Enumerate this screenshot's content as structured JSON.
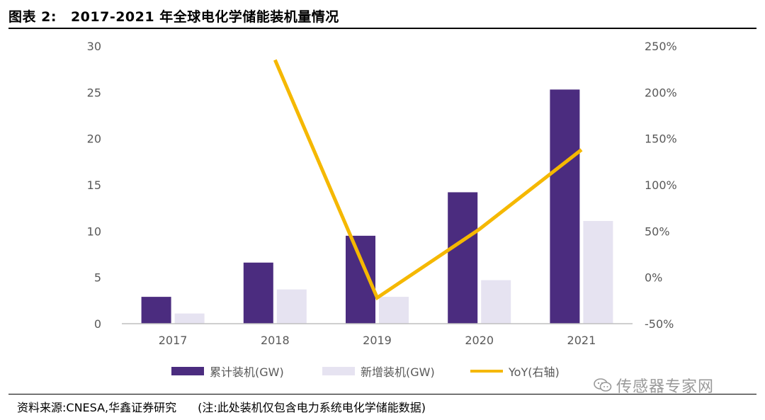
{
  "header": {
    "fig_label": "图表 2:",
    "title": "2017-2021 年全球电化学储能装机量情况"
  },
  "source": {
    "label": "资料来源:CNESA,华鑫证券研究",
    "note": "(注:此处装机仅包含电力系统电化学储能数据)"
  },
  "watermark": {
    "text": "传感器专家网",
    "icon": "wechat-icon"
  },
  "colors": {
    "cumulative": "#4B2C7F",
    "added": "#E6E3F1",
    "yoy": "#F5B800",
    "axis": "#BFBFBF",
    "tick": "#595959"
  },
  "chart_data": {
    "type": "bar",
    "title": "2017-2021 年全球电化学储能装机量情况",
    "categories": [
      "2017",
      "2018",
      "2019",
      "2020",
      "2021"
    ],
    "series": [
      {
        "name": "累计装机(GW)",
        "type": "bar",
        "axis": "left",
        "values": [
          2.9,
          6.6,
          9.5,
          14.2,
          25.3
        ]
      },
      {
        "name": "新增装机(GW)",
        "type": "bar",
        "axis": "left",
        "values": [
          1.1,
          3.7,
          2.9,
          4.7,
          11.1
        ]
      },
      {
        "name": "YoY(右轴)",
        "type": "line",
        "axis": "right",
        "values": [
          null,
          235,
          -22,
          52,
          138
        ]
      }
    ],
    "left_axis": {
      "min": 0,
      "max": 30,
      "ticks": [
        "0",
        "5",
        "10",
        "15",
        "20",
        "25",
        "30"
      ]
    },
    "right_axis": {
      "min": -50,
      "max": 250,
      "ticks": [
        "-50%",
        "0%",
        "50%",
        "100%",
        "150%",
        "200%",
        "250%"
      ]
    },
    "grid": false,
    "legend_position": "bottom"
  }
}
